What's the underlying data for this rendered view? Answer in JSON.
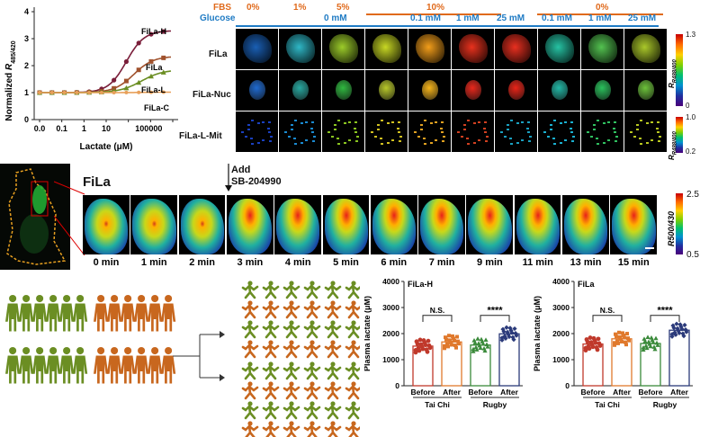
{
  "panelA": {
    "ylabel": "Normalized R485/420",
    "ylabel_pre": "Normalized ",
    "ylabel_sub": "485/420",
    "xlabel": "Lactate (μM)",
    "yticks": [
      "0",
      "1",
      "2",
      "3",
      "4"
    ],
    "xticks": [
      "0.0",
      "0.1",
      "1",
      "10",
      "100",
      "1000",
      "10000"
    ],
    "xticks_display": [
      "0.0",
      "0.1",
      "1",
      "10",
      "10000",
      ""
    ],
    "xtick_merged": "100000",
    "series_labels": {
      "h": "FiLa-H",
      "f": "FiLa",
      "l": "FiLa-L",
      "c": "FiLa-C"
    },
    "colors": {
      "h": "#7a1e3a",
      "f": "#a0522d",
      "l": "#6b8e23",
      "c": "#e8a05a"
    }
  },
  "panelB": {
    "fbs_label": "FBS",
    "fbs_values": [
      "0%",
      "1%",
      "5%",
      "10%",
      "0%"
    ],
    "glucose_label": "Glucose",
    "glucose_values": [
      "0 mM",
      "0.1 mM",
      "1 mM",
      "25 mM",
      "0.1 mM",
      "1 mM",
      "25 mM"
    ],
    "rows": [
      "FiLa",
      "FiLa-Nuc",
      "FiLa-L-Mit"
    ],
    "cbar1": {
      "top": "1.3",
      "bottom": "0"
    },
    "cbar2": {
      "top": "1.0",
      "bottom": "0.2"
    },
    "cbar_label": "R488/400"
  },
  "panelC": {
    "title": "FiLa",
    "add_label": "Add",
    "drug": "SB-204990",
    "times": [
      "0 min",
      "1 min",
      "2 min",
      "3 min",
      "4 min",
      "5 min",
      "6 min",
      "7 min",
      "9 min",
      "11 min",
      "13 min",
      "15 min"
    ],
    "cbar": {
      "top": "2.5",
      "bottom": "0.5",
      "label": "R500/430"
    }
  },
  "panelE1": {
    "subtitle": "FiLa-H",
    "ylabel": "Plasma lactate (μM)",
    "yticks": [
      "0",
      "1000",
      "2000",
      "3000",
      "4000"
    ],
    "groups": [
      "Before",
      "After",
      "Before",
      "After"
    ],
    "cohorts": [
      "Tai Chi",
      "Rugby"
    ],
    "sig1": "N.S.",
    "sig2": "****",
    "chart_data": {
      "type": "bar",
      "categories": [
        "Tai Chi Before",
        "Tai Chi After",
        "Rugby Before",
        "Rugby After"
      ],
      "values": [
        1520,
        1680,
        1560,
        1990
      ],
      "ylim": [
        0,
        4000
      ],
      "colors": [
        "#c0392b",
        "#e0792c",
        "#3a8a3a",
        "#2b3a7a"
      ]
    }
  },
  "panelE2": {
    "subtitle": "FiLa",
    "ylabel": "Plasma lactate (μM)",
    "yticks": [
      "0",
      "1000",
      "2000",
      "3000",
      "4000"
    ],
    "groups": [
      "Before",
      "After",
      "Before",
      "After"
    ],
    "cohorts": [
      "Tai Chi",
      "Rugby"
    ],
    "sig1": "N.S.",
    "sig2": "****",
    "chart_data": {
      "type": "bar",
      "categories": [
        "Tai Chi Before",
        "Tai Chi After",
        "Rugby Before",
        "Rugby After"
      ],
      "values": [
        1600,
        1800,
        1620,
        2130
      ],
      "ylim": [
        0,
        4000
      ],
      "colors": [
        "#c0392b",
        "#e0792c",
        "#3a8a3a",
        "#2b3a7a"
      ]
    }
  },
  "people_colors": {
    "green": "#6b8e23",
    "orange": "#c8671e"
  }
}
